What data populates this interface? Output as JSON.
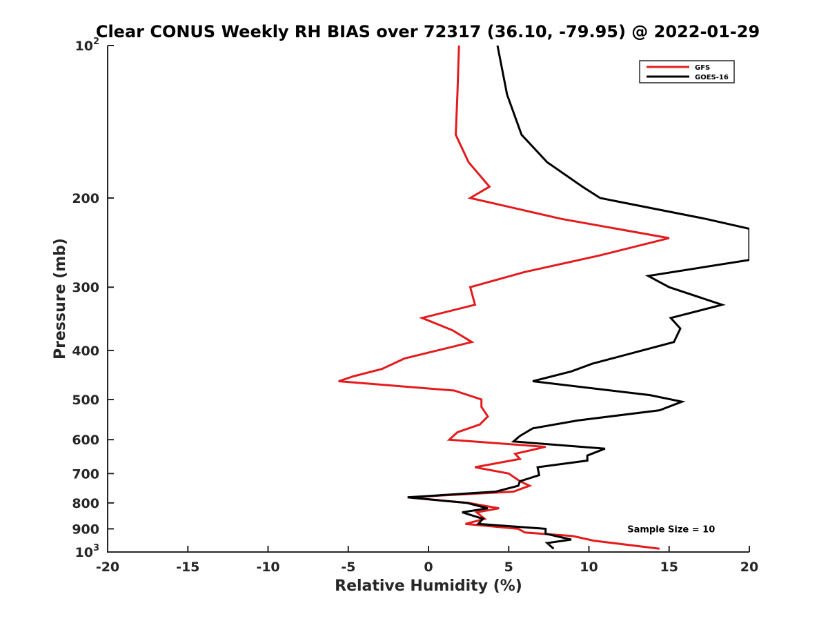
{
  "chart_data": {
    "type": "line",
    "title": "Clear CONUS Weekly RH BIAS over 72317 (36.10, -79.95) @ 2022-01-29",
    "xlabel": "Relative Humidity (%)",
    "ylabel": "Pressure (mb)",
    "xlim": [
      -20,
      20
    ],
    "ylim": [
      100,
      1000
    ],
    "y_scale": "log",
    "y_reversed": true,
    "grid": false,
    "legend_position": "top-right",
    "x_ticks": [
      {
        "value": -20,
        "label": "-20"
      },
      {
        "value": -15,
        "label": "-15"
      },
      {
        "value": -10,
        "label": "-10"
      },
      {
        "value": -5,
        "label": "-5"
      },
      {
        "value": 0,
        "label": "0"
      },
      {
        "value": 5,
        "label": "5"
      },
      {
        "value": 10,
        "label": "10"
      },
      {
        "value": 15,
        "label": "15"
      },
      {
        "value": 20,
        "label": "20"
      }
    ],
    "y_ticks": [
      {
        "value": 100,
        "label": "10",
        "exp": "2"
      },
      {
        "value": 200,
        "label": "200",
        "exp": ""
      },
      {
        "value": 300,
        "label": "300",
        "exp": ""
      },
      {
        "value": 400,
        "label": "400",
        "exp": ""
      },
      {
        "value": 500,
        "label": "500",
        "exp": ""
      },
      {
        "value": 600,
        "label": "600",
        "exp": ""
      },
      {
        "value": 700,
        "label": "700",
        "exp": ""
      },
      {
        "value": 800,
        "label": "800",
        "exp": ""
      },
      {
        "value": 900,
        "label": "900",
        "exp": ""
      },
      {
        "value": 1000,
        "label": "10",
        "exp": "3"
      }
    ],
    "series": [
      {
        "name": "GFS",
        "color": "#e41a1c",
        "points": [
          [
            1.9,
            100
          ],
          [
            1.8,
            125
          ],
          [
            1.7,
            150
          ],
          [
            2.5,
            170
          ],
          [
            3.8,
            190
          ],
          [
            2.6,
            200
          ],
          [
            8.3,
            220
          ],
          [
            15.0,
            240
          ],
          [
            10.6,
            260
          ],
          [
            6.0,
            280
          ],
          [
            2.6,
            300
          ],
          [
            2.9,
            325
          ],
          [
            -0.4,
            345
          ],
          [
            1.5,
            365
          ],
          [
            2.7,
            385
          ],
          [
            -1.5,
            415
          ],
          [
            -2.9,
            435
          ],
          [
            -4.7,
            450
          ],
          [
            -5.6,
            460
          ],
          [
            1.6,
            480
          ],
          [
            3.3,
            500
          ],
          [
            3.3,
            517
          ],
          [
            3.7,
            540
          ],
          [
            3.2,
            560
          ],
          [
            1.8,
            580
          ],
          [
            1.3,
            600
          ],
          [
            7.3,
            620
          ],
          [
            5.4,
            640
          ],
          [
            5.7,
            655
          ],
          [
            2.9,
            680
          ],
          [
            5.0,
            700
          ],
          [
            5.7,
            725
          ],
          [
            6.3,
            740
          ],
          [
            5.3,
            760
          ],
          [
            -1.3,
            780
          ],
          [
            2.5,
            800
          ],
          [
            4.4,
            820
          ],
          [
            3.0,
            835
          ],
          [
            3.5,
            860
          ],
          [
            2.3,
            880
          ],
          [
            5.6,
            900
          ],
          [
            6.0,
            915
          ],
          [
            9.0,
            930
          ],
          [
            10.3,
            950
          ],
          [
            14.4,
            985
          ]
        ]
      },
      {
        "name": "GOES-16",
        "color": "#000000",
        "points": [
          [
            4.3,
            100
          ],
          [
            4.9,
            125
          ],
          [
            5.8,
            150
          ],
          [
            7.4,
            170
          ],
          [
            9.6,
            190
          ],
          [
            10.7,
            200
          ],
          [
            17.3,
            220
          ],
          [
            20.0,
            230
          ],
          [
            20.0,
            265
          ],
          [
            13.7,
            285
          ],
          [
            15.0,
            300
          ],
          [
            18.3,
            325
          ],
          [
            15.1,
            345
          ],
          [
            15.7,
            362
          ],
          [
            15.3,
            385
          ],
          [
            10.2,
            425
          ],
          [
            8.9,
            440
          ],
          [
            6.5,
            460
          ],
          [
            13.8,
            490
          ],
          [
            15.8,
            505
          ],
          [
            14.4,
            525
          ],
          [
            9.3,
            550
          ],
          [
            6.5,
            570
          ],
          [
            5.7,
            590
          ],
          [
            5.3,
            605
          ],
          [
            11.0,
            625
          ],
          [
            9.9,
            645
          ],
          [
            9.9,
            660
          ],
          [
            6.8,
            680
          ],
          [
            6.9,
            705
          ],
          [
            5.7,
            725
          ],
          [
            5.6,
            740
          ],
          [
            4.2,
            760
          ],
          [
            -1.3,
            780
          ],
          [
            2.4,
            800
          ],
          [
            3.7,
            820
          ],
          [
            2.1,
            835
          ],
          [
            3.4,
            860
          ],
          [
            3.1,
            880
          ],
          [
            7.3,
            900
          ],
          [
            7.3,
            920
          ],
          [
            8.9,
            945
          ],
          [
            7.4,
            960
          ],
          [
            7.8,
            985
          ]
        ]
      }
    ],
    "annotations": [
      {
        "text": "Sample Size = 10",
        "x": 15,
        "y": 900
      }
    ]
  }
}
